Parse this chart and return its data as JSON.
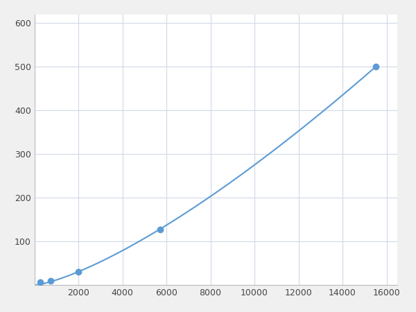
{
  "x_points": [
    250,
    750,
    2000,
    5700,
    15500
  ],
  "y_points": [
    7,
    10,
    30,
    128,
    500
  ],
  "line_color": "#5b9bd5",
  "marker_color": "#5b9bd5",
  "marker_size": 6,
  "linewidth": 1.5,
  "xlim": [
    0,
    16500
  ],
  "ylim": [
    0,
    620
  ],
  "xticks": [
    0,
    2000,
    4000,
    6000,
    8000,
    10000,
    12000,
    14000,
    16000
  ],
  "yticks": [
    0,
    100,
    200,
    300,
    400,
    500,
    600
  ],
  "grid_color": "#d0d8e8",
  "background_color": "#ffffff",
  "figure_bg": "#f0f0f0"
}
